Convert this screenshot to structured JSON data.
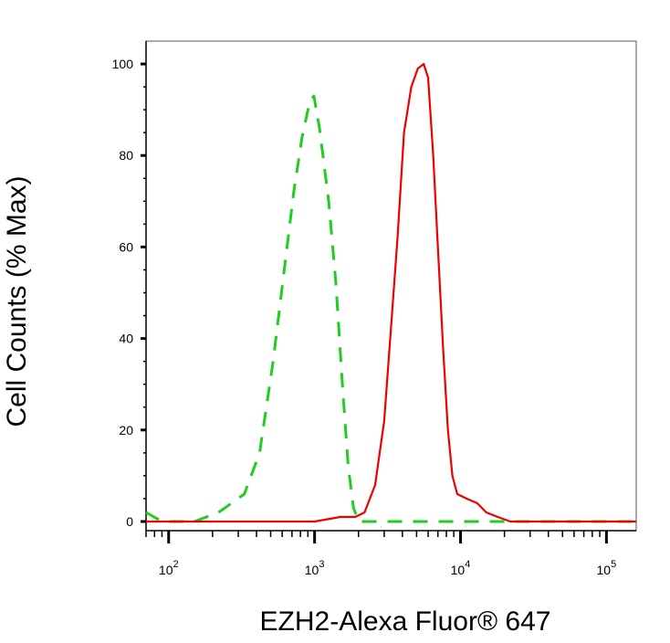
{
  "chart_data": {
    "type": "line",
    "xlabel": "EZH2-Alexa Fluor® 647",
    "ylabel": "Cell Counts (% Max)",
    "x_scale": "log",
    "xlim": [
      70,
      160000
    ],
    "ylim": [
      -2,
      105
    ],
    "y_ticks": [
      0,
      20,
      40,
      60,
      80,
      100
    ],
    "x_ticks": [
      {
        "value": 100,
        "base": "10",
        "exp": "2"
      },
      {
        "value": 1000,
        "base": "10",
        "exp": "3"
      },
      {
        "value": 10000,
        "base": "10",
        "exp": "4"
      },
      {
        "value": 100000,
        "base": "10",
        "exp": "5"
      }
    ],
    "series": [
      {
        "color": "#22cc22",
        "style": "dashed",
        "points": [
          [
            70,
            2
          ],
          [
            90,
            0
          ],
          [
            150,
            0
          ],
          [
            220,
            2
          ],
          [
            330,
            6
          ],
          [
            420,
            15
          ],
          [
            520,
            35
          ],
          [
            620,
            55
          ],
          [
            720,
            72
          ],
          [
            820,
            84
          ],
          [
            930,
            92
          ],
          [
            990,
            93
          ],
          [
            1080,
            86
          ],
          [
            1250,
            70
          ],
          [
            1400,
            52
          ],
          [
            1550,
            30
          ],
          [
            1700,
            12
          ],
          [
            1850,
            3
          ],
          [
            2000,
            0
          ],
          [
            5000,
            0
          ],
          [
            10000,
            0
          ],
          [
            20000,
            0
          ],
          [
            160000,
            0
          ]
        ]
      },
      {
        "color": "#ee0000",
        "style": "solid",
        "points": [
          [
            70,
            0
          ],
          [
            600,
            0
          ],
          [
            1000,
            0
          ],
          [
            1500,
            1
          ],
          [
            1900,
            1
          ],
          [
            2200,
            2
          ],
          [
            2600,
            8
          ],
          [
            3000,
            22
          ],
          [
            3300,
            40
          ],
          [
            3700,
            62
          ],
          [
            4100,
            85
          ],
          [
            4600,
            95
          ],
          [
            5100,
            99
          ],
          [
            5600,
            100
          ],
          [
            6000,
            97
          ],
          [
            6500,
            80
          ],
          [
            7000,
            60
          ],
          [
            7600,
            38
          ],
          [
            8200,
            20
          ],
          [
            8800,
            10
          ],
          [
            9500,
            6
          ],
          [
            11000,
            5
          ],
          [
            13000,
            4
          ],
          [
            15000,
            2
          ],
          [
            18000,
            1
          ],
          [
            22000,
            0
          ],
          [
            50000,
            0
          ],
          [
            160000,
            0
          ]
        ]
      }
    ]
  }
}
